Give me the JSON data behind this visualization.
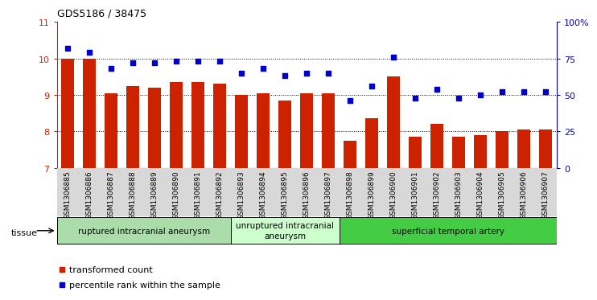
{
  "title": "GDS5186 / 38475",
  "samples": [
    "GSM1306885",
    "GSM1306886",
    "GSM1306887",
    "GSM1306888",
    "GSM1306889",
    "GSM1306890",
    "GSM1306891",
    "GSM1306892",
    "GSM1306893",
    "GSM1306894",
    "GSM1306895",
    "GSM1306896",
    "GSM1306897",
    "GSM1306898",
    "GSM1306899",
    "GSM1306900",
    "GSM1306901",
    "GSM1306902",
    "GSM1306903",
    "GSM1306904",
    "GSM1306905",
    "GSM1306906",
    "GSM1306907"
  ],
  "bar_values": [
    10.0,
    10.0,
    9.05,
    9.25,
    9.2,
    9.35,
    9.35,
    9.3,
    9.0,
    9.05,
    8.85,
    9.05,
    9.05,
    7.75,
    8.35,
    9.5,
    7.85,
    8.2,
    7.85,
    7.9,
    8.0,
    8.05,
    8.05
  ],
  "dot_values": [
    82,
    79,
    68,
    72,
    72,
    73,
    73,
    73,
    65,
    68,
    63,
    65,
    65,
    46,
    56,
    76,
    48,
    54,
    48,
    50,
    52,
    52,
    52
  ],
  "bar_color": "#cc2200",
  "dot_color": "#0000cc",
  "ylim_left": [
    7,
    11
  ],
  "ylim_right": [
    0,
    100
  ],
  "yticks_left": [
    7,
    8,
    9,
    10,
    11
  ],
  "yticks_right": [
    0,
    25,
    50,
    75,
    100
  ],
  "ytick_labels_right": [
    "0",
    "25",
    "50",
    "75",
    "100%"
  ],
  "grid_values": [
    8,
    9,
    10
  ],
  "tissue_groups": [
    {
      "label": "ruptured intracranial aneurysm",
      "start": 0,
      "end": 8,
      "color": "#aaddaa"
    },
    {
      "label": "unruptured intracranial\naneurysm",
      "start": 8,
      "end": 13,
      "color": "#ccffcc"
    },
    {
      "label": "superficial temporal artery",
      "start": 13,
      "end": 23,
      "color": "#44cc44"
    }
  ],
  "legend_items": [
    {
      "label": "transformed count",
      "color": "#cc2200"
    },
    {
      "label": "percentile rank within the sample",
      "color": "#0000cc"
    }
  ],
  "tissue_label": "tissue",
  "xlabel_bg": "#d8d8d8"
}
